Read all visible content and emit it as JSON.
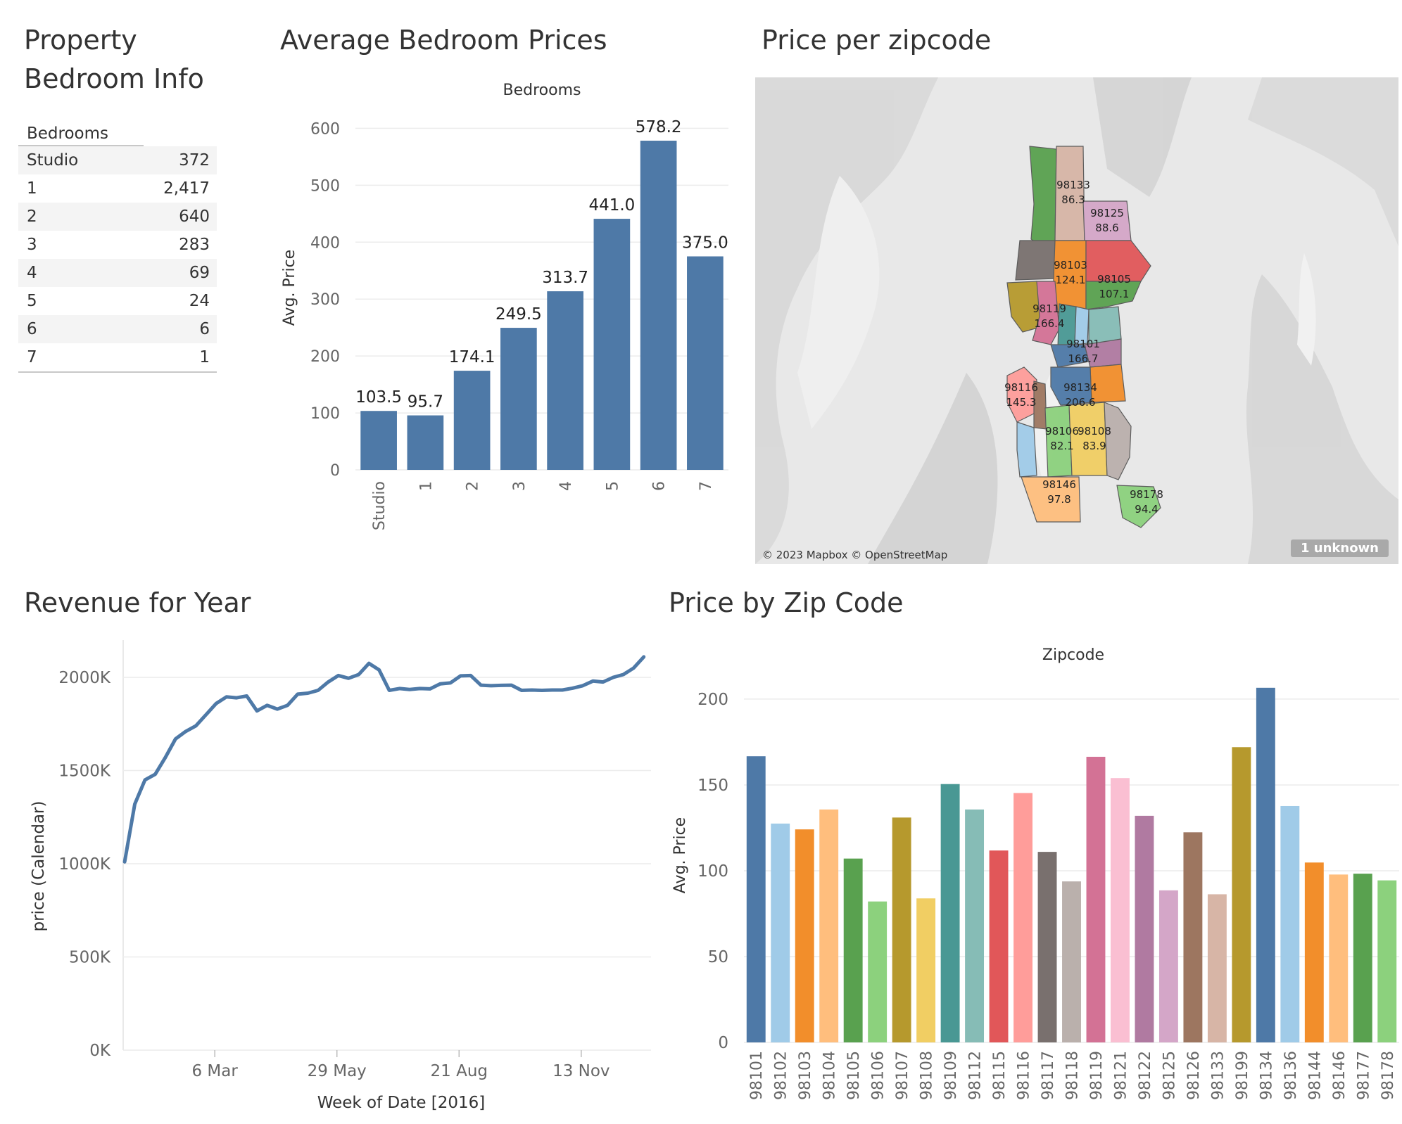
{
  "titles": {
    "table": "Property Bedroom Info",
    "bed_chart": "Average Bedroom Prices",
    "map": "Price per zipcode",
    "revenue": "Revenue for Year",
    "zip_chart": "Price by Zip Code"
  },
  "bedroom_table": {
    "header": "Bedrooms",
    "rows": [
      {
        "label": "Studio",
        "count": "372"
      },
      {
        "label": "1",
        "count": "2,417"
      },
      {
        "label": "2",
        "count": "640"
      },
      {
        "label": "3",
        "count": "283"
      },
      {
        "label": "4",
        "count": "69"
      },
      {
        "label": "5",
        "count": "24"
      },
      {
        "label": "6",
        "count": "6"
      },
      {
        "label": "7",
        "count": "1"
      }
    ]
  },
  "map": {
    "attribution": "© 2023 Mapbox © OpenStreetMap",
    "unknown_badge": "1 unknown",
    "labels": [
      {
        "zip": "98133",
        "value": "86.3"
      },
      {
        "zip": "98125",
        "value": "88.6"
      },
      {
        "zip": "98103",
        "value": "124.1"
      },
      {
        "zip": "98105",
        "value": "107.1"
      },
      {
        "zip": "98119",
        "value": "166.4"
      },
      {
        "zip": "98101",
        "value": "166.7"
      },
      {
        "zip": "98116",
        "value": "145.3"
      },
      {
        "zip": "98134",
        "value": "206.6"
      },
      {
        "zip": "98106",
        "value": "82.1"
      },
      {
        "zip": "98108",
        "value": "83.9"
      },
      {
        "zip": "98146",
        "value": "97.8"
      },
      {
        "zip": "98178",
        "value": "94.4"
      }
    ]
  },
  "chart_data": [
    {
      "type": "bar",
      "title": "Average Bedroom Prices",
      "header": "Bedrooms",
      "ylabel": "Avg. Price",
      "categories": [
        "Studio",
        "1",
        "2",
        "3",
        "4",
        "5",
        "6",
        "7"
      ],
      "values": [
        103.5,
        95.7,
        174.1,
        249.5,
        313.7,
        441.0,
        578.2,
        375.0
      ],
      "data_labels": [
        "103.5",
        "95.7",
        "174.1",
        "249.5",
        "313.7",
        "441.0",
        "578.2",
        "375.0"
      ],
      "ylim": [
        0,
        640
      ],
      "yticks": [
        0,
        100,
        200,
        300,
        400,
        500,
        600
      ],
      "bar_color": "#4e79a7",
      "grid": true
    },
    {
      "type": "line",
      "title": "Revenue for Year",
      "xlabel": "Week of Date [2016]",
      "ylabel": "price (Calendar)",
      "x_ticks": [
        "6 Mar",
        "29 May",
        "21 Aug",
        "13 Nov"
      ],
      "x_tick_dates": [
        "2016-03-06",
        "2016-05-29",
        "2016-08-21",
        "2016-11-13"
      ],
      "x_range": [
        "2016-01-03",
        "2016-12-31"
      ],
      "yticks": [
        0,
        500000,
        1000000,
        1500000,
        2000000
      ],
      "ytick_labels": [
        "0K",
        "500K",
        "1000K",
        "1500K",
        "2000K"
      ],
      "ylim": [
        0,
        2200000
      ],
      "line_color": "#4e79a7",
      "x": [
        "2016-01-04",
        "2016-01-11",
        "2016-01-18",
        "2016-01-25",
        "2016-02-01",
        "2016-02-08",
        "2016-02-15",
        "2016-02-22",
        "2016-02-29",
        "2016-03-07",
        "2016-03-14",
        "2016-03-21",
        "2016-03-28",
        "2016-04-04",
        "2016-04-11",
        "2016-04-18",
        "2016-04-25",
        "2016-05-02",
        "2016-05-09",
        "2016-05-16",
        "2016-05-23",
        "2016-05-30",
        "2016-06-06",
        "2016-06-13",
        "2016-06-20",
        "2016-06-27",
        "2016-07-04",
        "2016-07-11",
        "2016-07-18",
        "2016-07-25",
        "2016-08-01",
        "2016-08-08",
        "2016-08-15",
        "2016-08-22",
        "2016-08-29",
        "2016-09-05",
        "2016-09-12",
        "2016-09-19",
        "2016-09-26",
        "2016-10-03",
        "2016-10-10",
        "2016-10-17",
        "2016-10-24",
        "2016-10-31",
        "2016-11-07",
        "2016-11-14",
        "2016-11-21",
        "2016-11-28",
        "2016-12-05",
        "2016-12-12",
        "2016-12-19",
        "2016-12-26"
      ],
      "values": [
        1010000,
        1320000,
        1450000,
        1480000,
        1570000,
        1670000,
        1710000,
        1740000,
        1800000,
        1860000,
        1895000,
        1890000,
        1900000,
        1820000,
        1850000,
        1830000,
        1850000,
        1910000,
        1915000,
        1930000,
        1975000,
        2010000,
        1995000,
        2015000,
        2075000,
        2040000,
        1930000,
        1940000,
        1935000,
        1940000,
        1938000,
        1965000,
        1970000,
        2008000,
        2010000,
        1958000,
        1955000,
        1957000,
        1958000,
        1930000,
        1932000,
        1930000,
        1932000,
        1932000,
        1942000,
        1955000,
        1980000,
        1975000,
        2000000,
        2015000,
        2050000,
        2110000
      ]
    },
    {
      "type": "bar",
      "title": "Price by Zip Code",
      "header": "Zipcode",
      "ylabel": "Avg. Price",
      "categories": [
        "98101",
        "98102",
        "98103",
        "98104",
        "98105",
        "98106",
        "98107",
        "98108",
        "98109",
        "98112",
        "98115",
        "98116",
        "98117",
        "98118",
        "98119",
        "98121",
        "98122",
        "98125",
        "98126",
        "98133",
        "98199",
        "98134",
        "98136",
        "98144",
        "98146",
        "98177",
        "98178"
      ],
      "values": [
        166.7,
        127.5,
        124.1,
        135.7,
        107.1,
        82.1,
        131.0,
        83.9,
        150.5,
        135.7,
        111.8,
        145.3,
        111.0,
        93.8,
        166.4,
        154.0,
        132.0,
        88.6,
        122.4,
        86.3,
        172.0,
        206.6,
        137.7,
        104.8,
        97.8,
        98.3,
        94.4
      ],
      "colors": [
        "#4e79a7",
        "#a0cbe8",
        "#f28e2b",
        "#ffbe7d",
        "#59a14f",
        "#8cd17d",
        "#b6992d",
        "#f1ce63",
        "#499894",
        "#86bcb6",
        "#e15759",
        "#ff9d9a",
        "#79706e",
        "#bab0ac",
        "#d37295",
        "#fabfd2",
        "#b07aa1",
        "#d4a6c8",
        "#9d7660",
        "#d7b5a6",
        "#b6992d",
        "#4e79a7",
        "#a0cbe8",
        "#f28e2b",
        "#ffbe7d",
        "#59a14f",
        "#8cd17d"
      ],
      "ylim": [
        0,
        218
      ],
      "yticks": [
        0,
        50,
        100,
        150,
        200
      ],
      "grid": true
    }
  ]
}
